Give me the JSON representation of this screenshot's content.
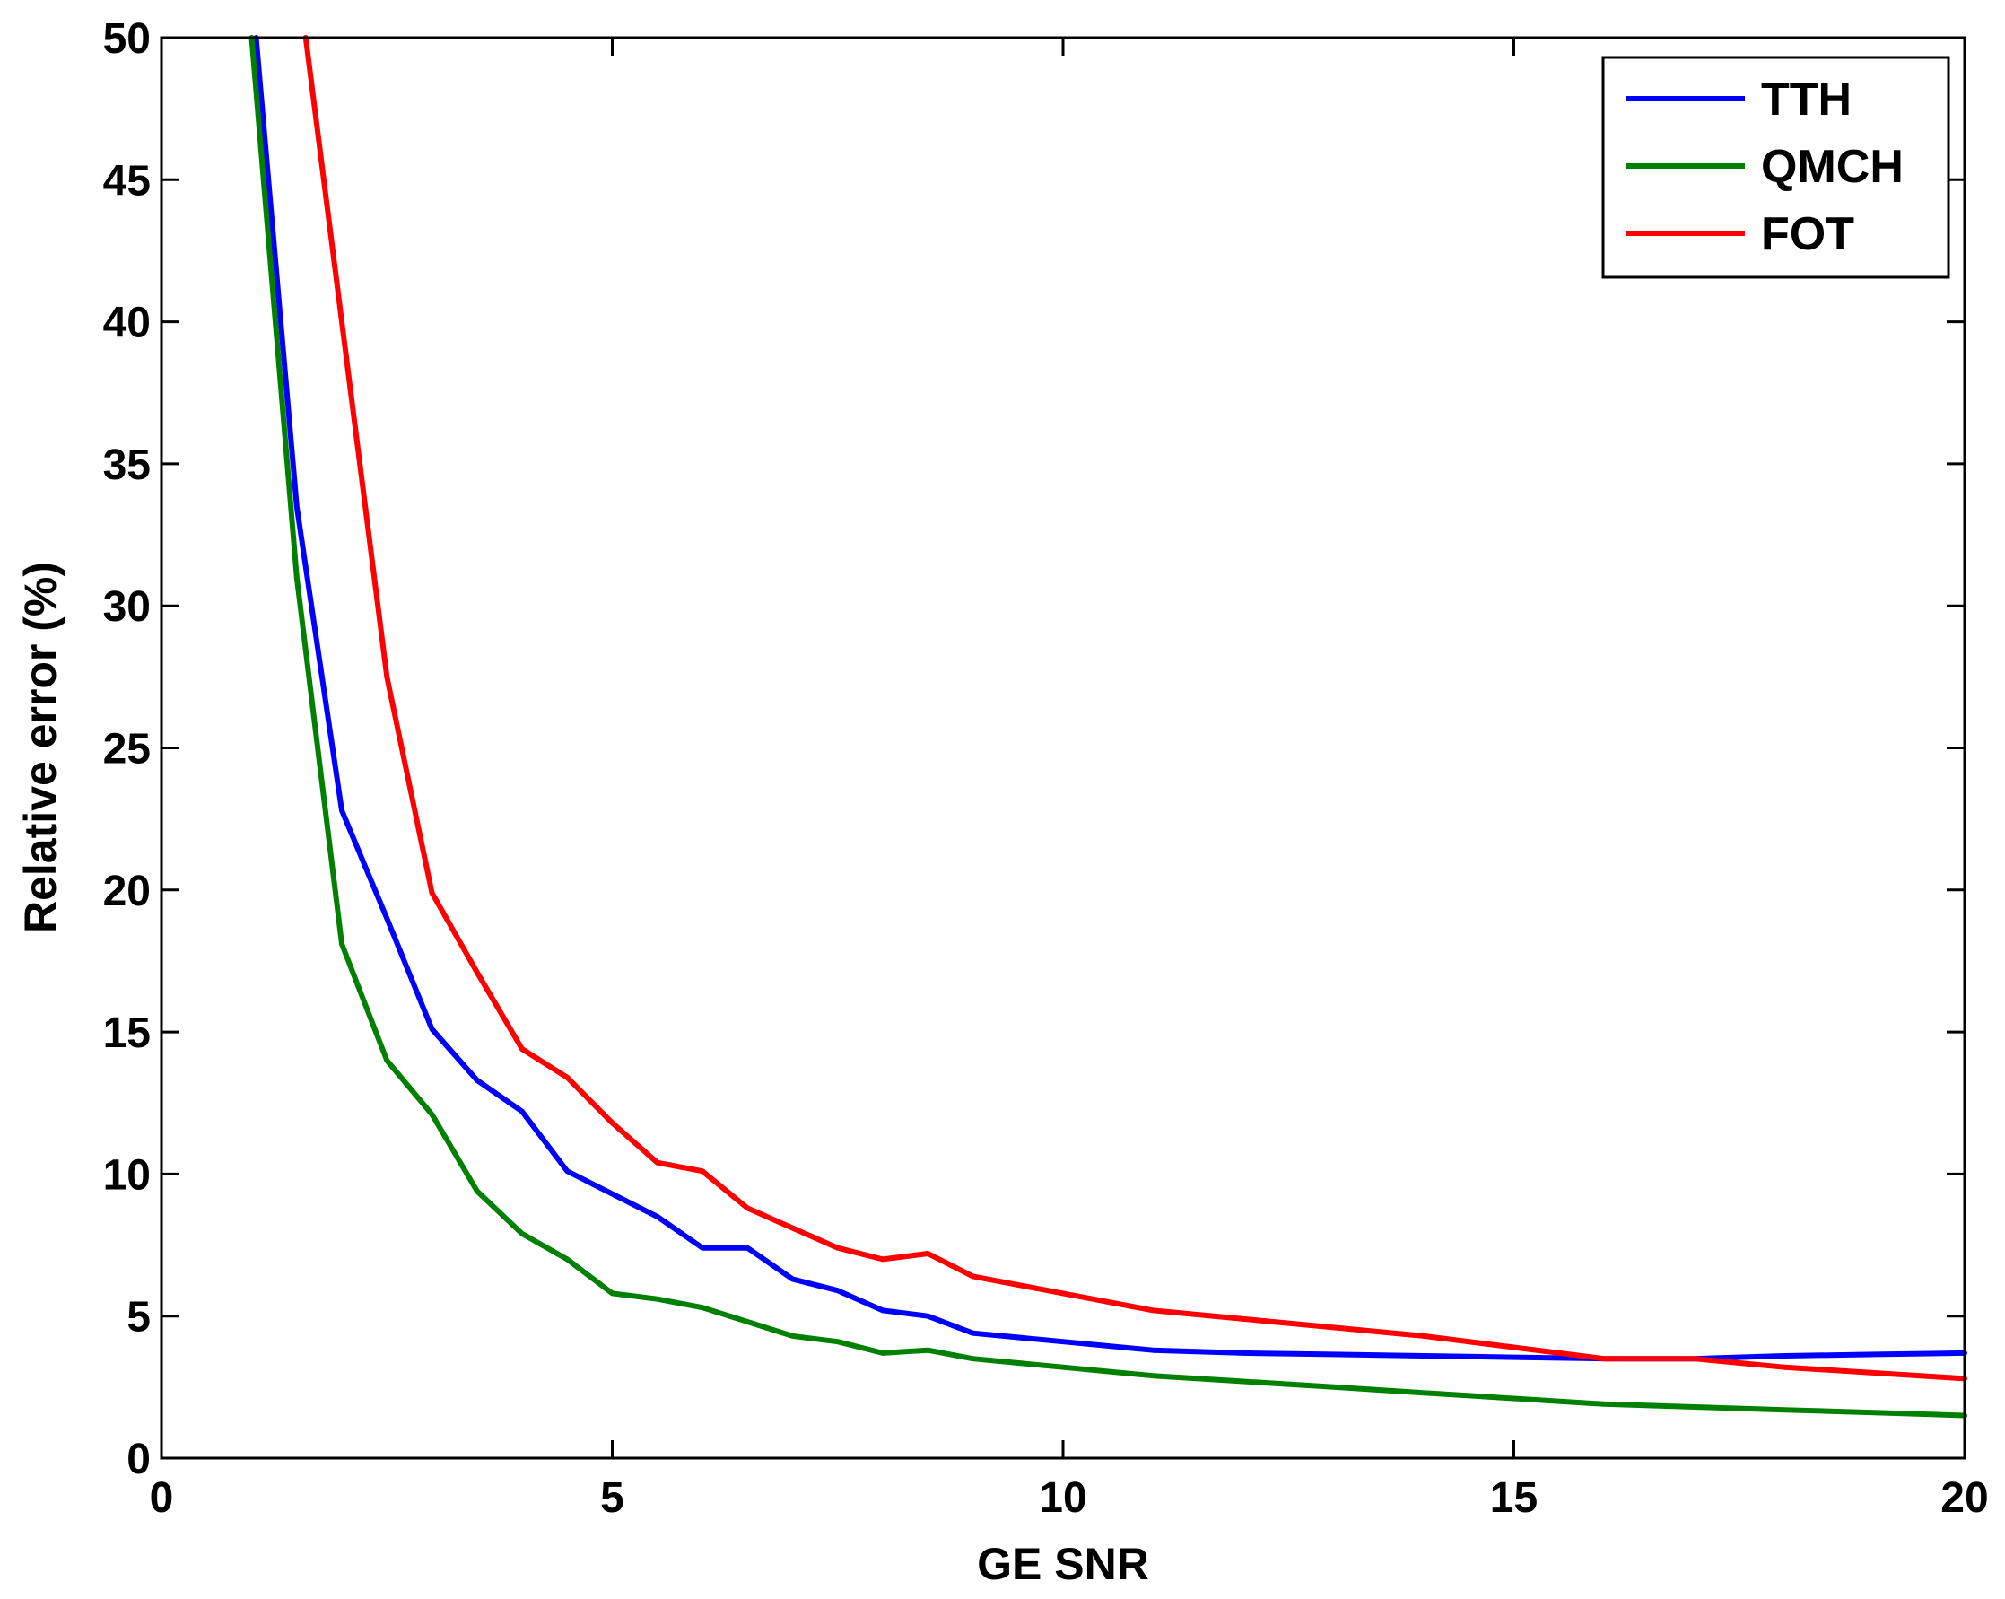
{
  "chart_data": {
    "type": "line",
    "title": "",
    "xlabel": "GE SNR",
    "ylabel": "Relative error (%)",
    "xlim": [
      0,
      20
    ],
    "ylim": [
      0,
      50
    ],
    "xticks": [
      0,
      5,
      10,
      15,
      20
    ],
    "yticks": [
      0,
      5,
      10,
      15,
      20,
      25,
      30,
      35,
      40,
      45,
      50
    ],
    "grid": false,
    "legend_position": "top-right",
    "series": [
      {
        "name": "TTH",
        "color": "#0000ff",
        "x": [
          1.05,
          1.5,
          2,
          2.5,
          3,
          3.5,
          4,
          4.5,
          5,
          5.5,
          6,
          6.5,
          7,
          7.5,
          8,
          8.5,
          9,
          10,
          11,
          12,
          13,
          14,
          15,
          16,
          17,
          18,
          19,
          20
        ],
        "y": [
          50,
          33.5,
          22.8,
          19,
          15.1,
          13.3,
          12.2,
          10.1,
          9.3,
          8.5,
          7.4,
          7.4,
          6.3,
          5.9,
          5.2,
          5.0,
          4.4,
          4.1,
          3.8,
          3.7,
          3.65,
          3.6,
          3.55,
          3.5,
          3.5,
          3.6,
          3.65,
          3.7
        ]
      },
      {
        "name": "QMCH",
        "color": "#008000",
        "x": [
          1.0,
          1.5,
          2,
          2.5,
          3,
          3.5,
          4,
          4.5,
          5,
          5.5,
          6,
          6.5,
          7,
          7.5,
          8,
          8.5,
          9,
          10,
          11,
          12,
          13,
          14,
          15,
          16,
          17,
          18,
          19,
          20
        ],
        "y": [
          50,
          31,
          18.1,
          14.0,
          12.1,
          9.4,
          7.9,
          7.0,
          5.8,
          5.6,
          5.3,
          4.8,
          4.3,
          4.1,
          3.7,
          3.8,
          3.5,
          3.2,
          2.9,
          2.7,
          2.5,
          2.3,
          2.1,
          1.9,
          1.8,
          1.7,
          1.6,
          1.5
        ]
      },
      {
        "name": "FOT",
        "color": "#ff0000",
        "x": [
          1.6,
          2,
          2.5,
          3,
          3.5,
          4,
          4.5,
          5,
          5.5,
          6,
          6.5,
          7,
          7.5,
          8,
          8.5,
          9,
          10,
          11,
          12,
          13,
          14,
          15,
          16,
          17,
          18,
          19,
          20
        ],
        "y": [
          50,
          40,
          27.5,
          19.9,
          17.1,
          14.4,
          13.4,
          11.8,
          10.4,
          10.1,
          8.8,
          8.1,
          7.4,
          7.0,
          7.2,
          6.4,
          5.8,
          5.2,
          4.9,
          4.6,
          4.3,
          3.9,
          3.5,
          3.5,
          3.2,
          3.0,
          2.8
        ]
      }
    ]
  }
}
